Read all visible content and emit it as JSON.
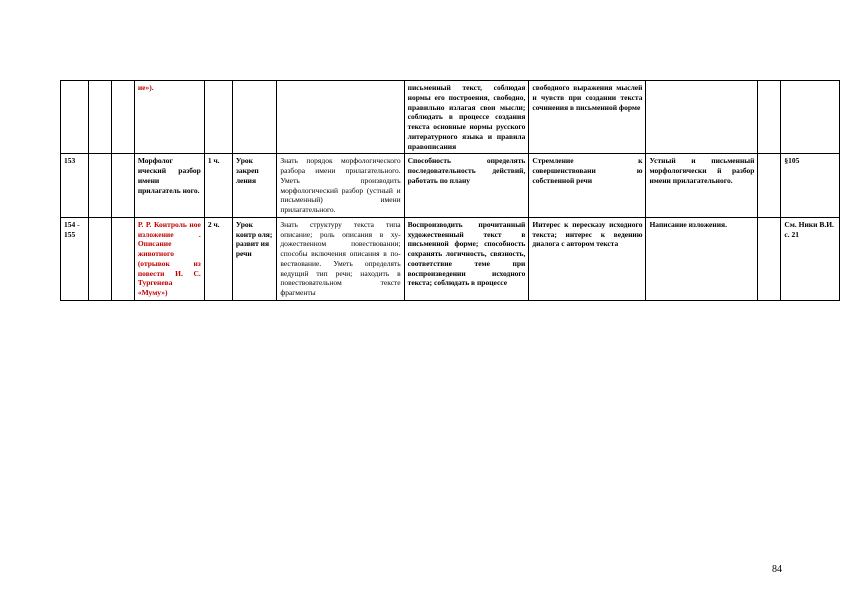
{
  "page_number": "84",
  "rows": [
    {
      "num": "",
      "date1": "",
      "date2": "",
      "topic": "ие»).",
      "topic_red": true,
      "hours": "",
      "lesson_type": "",
      "planned": "",
      "meta": "письменный текст, соблюдая нормы его построения, свободно, правильно излагая свои мысли; соблюдать в процессе создания текста основные нормы русского литературного языка и правила правописания",
      "meta_p": "свободного выражения мыслей и чувств при создании текста сочинения в письменной форме",
      "control": "",
      "hw1": "",
      "hw2": ""
    },
    {
      "num": "153",
      "date1": "",
      "date2": "",
      "topic": "Морфолог ический разбор имени прилагатель ного.",
      "topic_red": false,
      "hours": "1 ч.",
      "lesson_type": "Урок закреп ления",
      "planned": "Знать порядок морфологического разбора имени прилагательного. Уметь производить морфологический разбор (устный и письменный) имени прилагательного.",
      "meta": "Способность определять последовательность действий, работать по плану",
      "meta_p": "Стремление к совершенствовани ю собственной речи",
      "control": "Устный и письменный морфологически й разбор имени прилагательного.",
      "hw1": "",
      "hw2": "§105"
    },
    {
      "num": "154 - 155",
      "date1": "",
      "date2": "",
      "topic": "Р. Р. Контроль ное изложение . Описание животного (отрывок из повести И. С. Тургенева «Муму»)",
      "topic_red": true,
      "hours": "2 ч.",
      "lesson_type": "Урок контр оля; развит ия речи",
      "planned": "Знать структуру текста типа описание; роль описания в ху- дожественном повествовании; способы включения описания в по- вествование. Уметь определять ведущий тип речи; находить в повествовательном тексте фрагменты",
      "meta": "Воспроизводить прочитанный художественный текст в письменной форме; способность сохранять логичность, связность, соответствие теме при воспроизведении исходного текста; соблюдать в процессе",
      "meta_p": "Интерес к пересказу исходного текста; интерес к ведению диалога с автором текста",
      "control": "Написание изложения.",
      "hw1": "",
      "hw2": "См. Ники В.И. с. 21"
    }
  ]
}
